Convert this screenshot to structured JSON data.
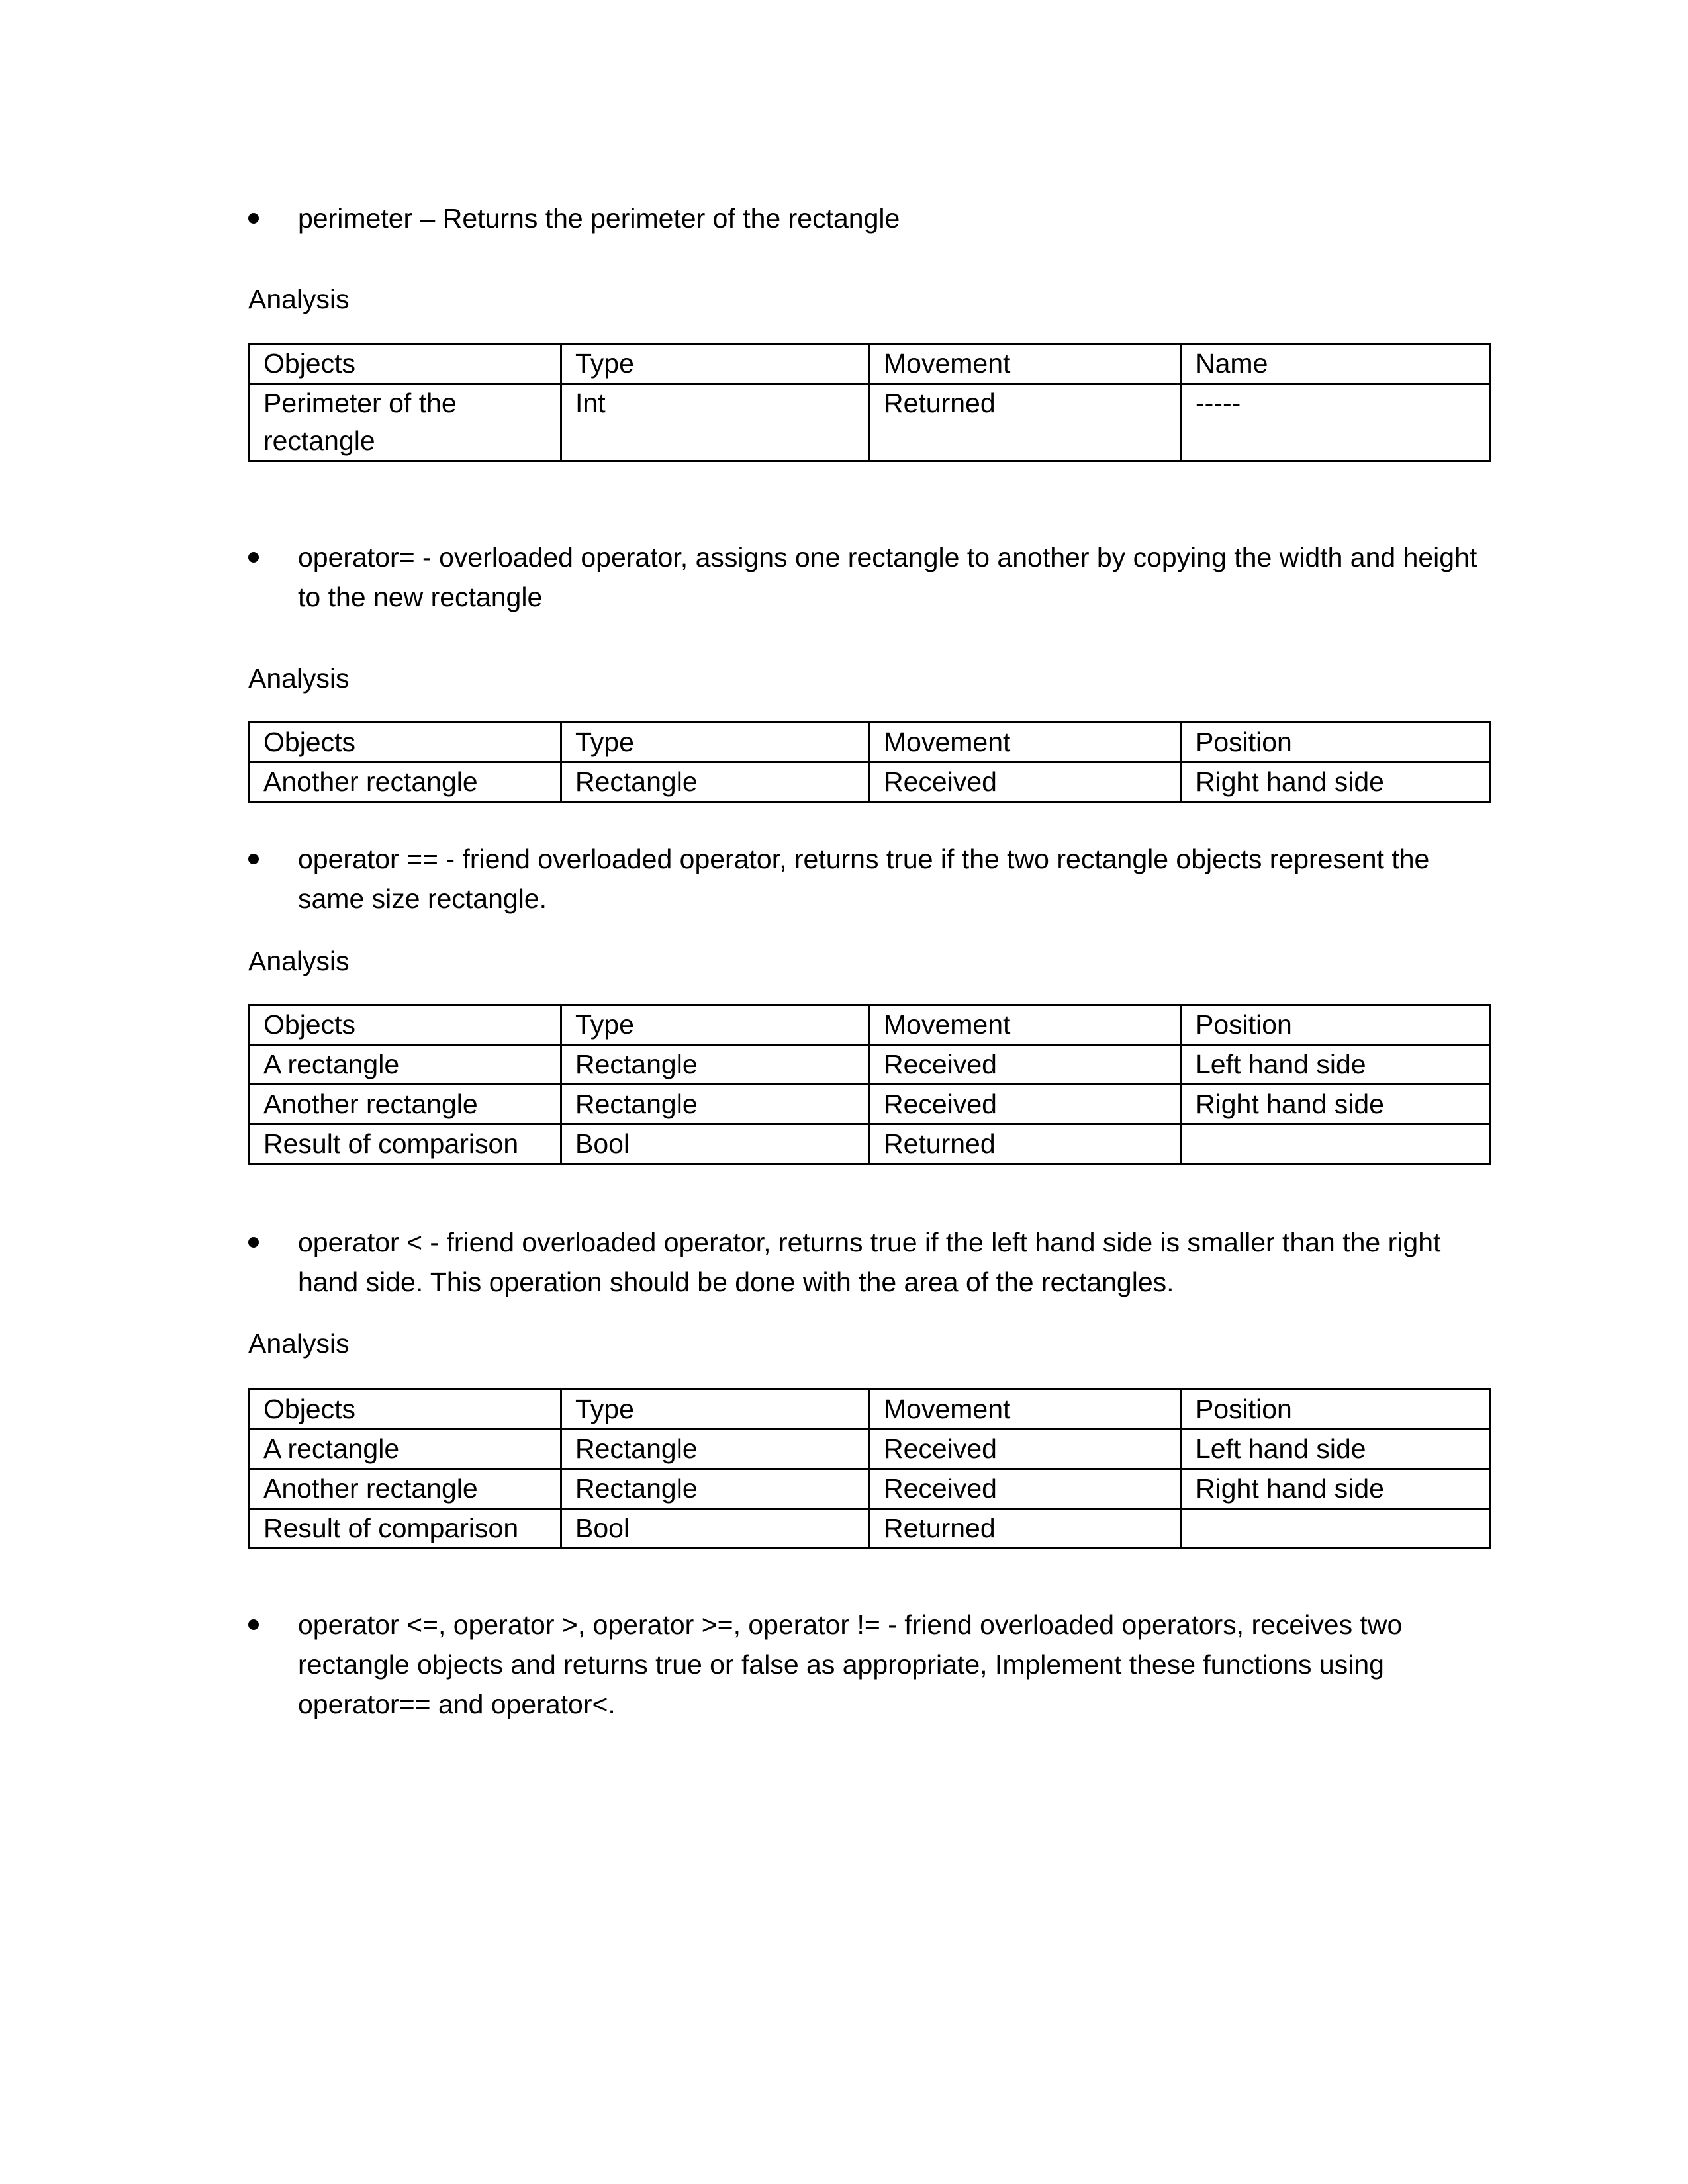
{
  "sections": [
    {
      "bullet": "perimeter – Returns the perimeter of the rectangle",
      "analysis_label": "Analysis",
      "table": {
        "headers": [
          "Objects",
          "Type",
          "Movement",
          "Name"
        ],
        "rows": [
          [
            "Perimeter of the rectangle",
            "Int",
            "Returned",
            "-----"
          ]
        ]
      }
    },
    {
      "bullet": "operator= - overloaded operator, assigns one rectangle to another by copying the width and height to the new rectangle",
      "analysis_label": "Analysis",
      "table": {
        "headers": [
          "Objects",
          "Type",
          "Movement",
          "Position"
        ],
        "rows": [
          [
            "Another rectangle",
            "Rectangle",
            "Received",
            "Right hand side"
          ]
        ]
      }
    },
    {
      "bullet": "operator == - friend overloaded operator, returns true if the two rectangle objects represent the same size rectangle.",
      "analysis_label": "Analysis",
      "table": {
        "headers": [
          "Objects",
          "Type",
          "Movement",
          "Position"
        ],
        "rows": [
          [
            "A rectangle",
            "Rectangle",
            "Received",
            "Left hand side"
          ],
          [
            "Another rectangle",
            "Rectangle",
            "Received",
            "Right hand side"
          ],
          [
            "Result of comparison",
            "Bool",
            "Returned",
            ""
          ]
        ]
      }
    },
    {
      "bullet": "operator < - friend overloaded operator, returns true if the left hand side is smaller than the right hand side.  This operation should be done with the area of the rectangles.",
      "analysis_label": "Analysis",
      "table": {
        "headers": [
          "Objects",
          "Type",
          "Movement",
          "Position"
        ],
        "rows": [
          [
            "A rectangle",
            "Rectangle",
            "Received",
            "Left hand side"
          ],
          [
            "Another rectangle",
            "Rectangle",
            "Received",
            "Right hand side"
          ],
          [
            "Result of comparison",
            "Bool",
            "Returned",
            ""
          ]
        ]
      }
    }
  ],
  "final_bullet": "operator <=, operator >, operator >=, operator != - friend overloaded operators, receives two rectangle objects and returns true or false as appropriate, Implement these functions using operator== and operator<."
}
